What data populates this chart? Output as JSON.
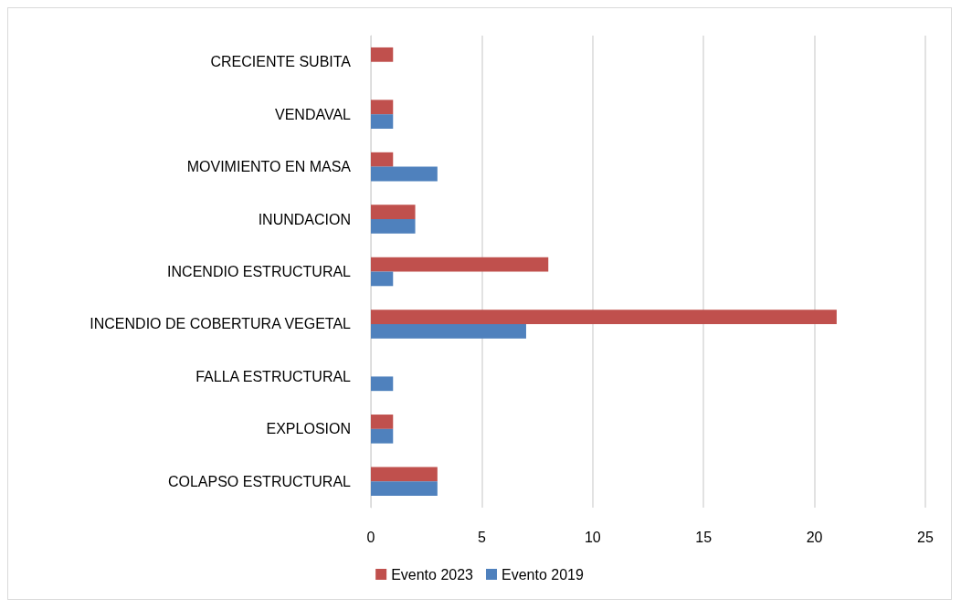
{
  "chart_data": {
    "type": "bar",
    "orientation": "horizontal",
    "categories": [
      "CRECIENTE SUBITA",
      "VENDAVAL",
      "MOVIMIENTO EN MASA",
      "INUNDACION",
      "INCENDIO ESTRUCTURAL",
      "INCENDIO DE COBERTURA VEGETAL",
      "FALLA ESTRUCTURAL",
      "EXPLOSION",
      "COLAPSO ESTRUCTURAL"
    ],
    "series": [
      {
        "name": "Evento 2023",
        "color": "#c0504d",
        "values": [
          1,
          1,
          1,
          2,
          8,
          21,
          null,
          1,
          3
        ]
      },
      {
        "name": "Evento 2019",
        "color": "#4f81bd",
        "values": [
          null,
          1,
          3,
          2,
          1,
          7,
          1,
          1,
          3
        ]
      }
    ],
    "xlim": [
      0,
      25
    ],
    "xticks": [
      0,
      5,
      10,
      15,
      20,
      25
    ],
    "grid": "x",
    "legend": "bottom"
  }
}
